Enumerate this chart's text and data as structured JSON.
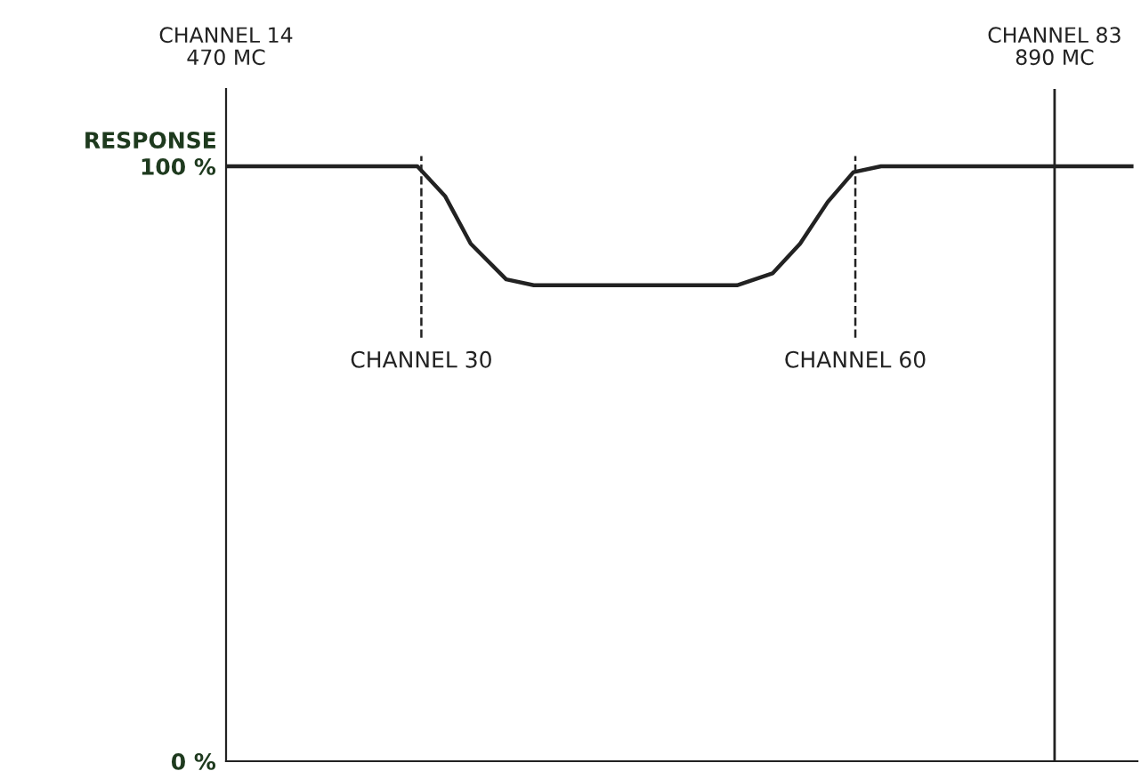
{
  "chart_data": {
    "type": "line",
    "x": [
      470,
      567,
      581,
      594,
      612,
      626,
      729,
      747,
      761,
      775,
      788,
      802,
      929
    ],
    "series": [
      {
        "color": "#222222",
        "values": [
          100,
          100,
          95,
          87,
          81,
          80,
          80,
          82,
          87,
          94,
          99,
          100,
          100
        ]
      }
    ],
    "xlim": [
      470,
      932
    ],
    "ylim": [
      0,
      113
    ],
    "xticks": [
      {
        "value": 470,
        "label": "470 MC"
      },
      {
        "value": 890,
        "label": "890 MC"
      }
    ],
    "yticks": [
      {
        "value": 0,
        "label": "0 %"
      },
      {
        "value": 100,
        "label": "100 %"
      }
    ],
    "ylabel": "RESPONSE",
    "annotations": [
      "CHANNEL 14",
      "CHANNEL 83"
    ],
    "ref_lines": [
      {
        "axis": "x",
        "value": 569,
        "label": "CHANNEL 30",
        "line_style": "dashed",
        "color": "#222222"
      },
      {
        "axis": "x",
        "value": 789,
        "label": "CHANNEL 60",
        "line_style": "dashed",
        "color": "#222222"
      },
      {
        "axis": "x",
        "value": 890,
        "label": null,
        "line_style": "solid",
        "color": "#222222"
      }
    ],
    "grid": false,
    "legend": false,
    "marker": "none",
    "line_style": "solid"
  }
}
